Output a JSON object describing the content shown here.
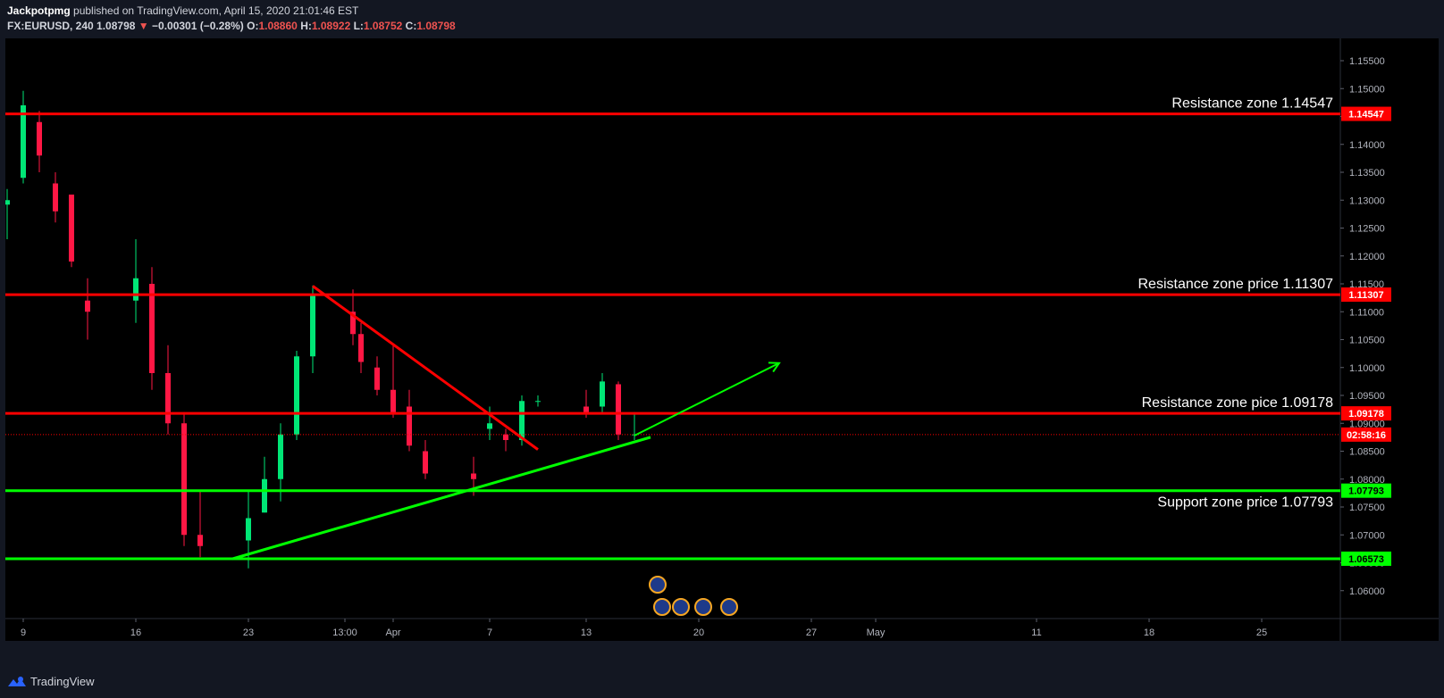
{
  "header": {
    "author": "Jackpotpmg",
    "published_text": "published on TradingView.com, April 15, 2020 21:01:46 EST",
    "symbol": "FX:EURUSD, 240",
    "last": "1.08798",
    "change": "−0.00301 (−0.28%)",
    "o_label": "O:",
    "o_value": "1.08860",
    "h_label": "H:",
    "h_value": "1.08922",
    "l_label": "L:",
    "l_value": "1.08752",
    "c_label": "C:",
    "c_value": "1.08798"
  },
  "footer": {
    "brand": "TradingView"
  },
  "chart_data": {
    "type": "candlestick",
    "ylim": [
      1.055,
      1.159
    ],
    "y_ticks": [
      "1.06000",
      "1.06500",
      "1.07000",
      "1.07500",
      "1.08000",
      "1.08500",
      "1.09000",
      "1.09500",
      "1.10000",
      "1.10500",
      "1.11000",
      "1.11500",
      "1.12000",
      "1.12500",
      "1.13000",
      "1.13500",
      "1.14000",
      "1.14500",
      "1.15000",
      "1.15500"
    ],
    "x_ticks": [
      "9",
      "16",
      "23",
      "13:00",
      "Apr",
      "7",
      "13",
      "20",
      "27",
      "May",
      "11",
      "18",
      "25"
    ],
    "x_tick_dates": [
      "2020-03-09",
      "2020-03-16",
      "2020-03-23",
      "2020-03-29",
      "2020-04-01",
      "2020-04-07",
      "2020-04-13",
      "2020-04-20",
      "2020-04-27",
      "2020-05-01",
      "2020-05-11",
      "2020-05-18",
      "2020-05-25"
    ],
    "levels": [
      {
        "label": "Resistance zone 1.14547",
        "price": 1.14547,
        "tag": "1.14547",
        "color": "#ff0000",
        "text_color": "#ffffff"
      },
      {
        "label": "Resistance zone price 1.11307",
        "price": 1.11307,
        "tag": "1.11307",
        "color": "#ff0000",
        "text_color": "#ffffff"
      },
      {
        "label": "Resistance zone pice 1.09178",
        "price": 1.09178,
        "tag": "1.09178",
        "color": "#ff0000",
        "text_color": "#ffffff"
      },
      {
        "label": "Support zone price 1.07793",
        "price": 1.07793,
        "tag": "1.07793",
        "color": "#00ff00",
        "text_color": "#000000"
      },
      {
        "label": "",
        "price": 1.06573,
        "tag": "1.06573",
        "color": "#00ff00",
        "text_color": "#000000"
      }
    ],
    "current_price": {
      "price": 1.08798,
      "tag": "02:58:16",
      "color": "#ff0000"
    },
    "trendlines": [
      {
        "color": "#ff0000",
        "from": [
          "2020-03-27",
          1.1146
        ],
        "to": [
          "2020-04-10",
          1.0853
        ]
      },
      {
        "color": "#00ff00",
        "from": [
          "2020-03-22",
          1.0657
        ],
        "to": [
          "2020-04-17",
          1.0875
        ]
      },
      {
        "color": "#00ff00",
        "from": [
          "2020-04-16",
          1.0878
        ],
        "to": [
          "2020-04-25",
          1.1008
        ],
        "arrow": true
      }
    ],
    "candles": [
      [
        "2020-03-08 00:00",
        1.1292,
        1.132,
        1.123,
        1.13
      ],
      [
        "2020-03-09 00:00",
        1.134,
        1.1496,
        1.133,
        1.147
      ],
      [
        "2020-03-10 00:00",
        1.144,
        1.146,
        1.135,
        1.138
      ],
      [
        "2020-03-11 00:00",
        1.133,
        1.135,
        1.126,
        1.128
      ],
      [
        "2020-03-12 00:00",
        1.131,
        1.13,
        1.118,
        1.119
      ],
      [
        "2020-03-13 00:00",
        1.112,
        1.116,
        1.105,
        1.11
      ],
      [
        "2020-03-16 00:00",
        1.112,
        1.123,
        1.108,
        1.116
      ],
      [
        "2020-03-17 00:00",
        1.115,
        1.118,
        1.096,
        1.099
      ],
      [
        "2020-03-18 00:00",
        1.099,
        1.104,
        1.088,
        1.09
      ],
      [
        "2020-03-19 00:00",
        1.09,
        1.092,
        1.068,
        1.07
      ],
      [
        "2020-03-20 00:00",
        1.07,
        1.078,
        1.066,
        1.068
      ],
      [
        "2020-03-23 00:00",
        1.069,
        1.078,
        1.064,
        1.073
      ],
      [
        "2020-03-24 00:00",
        1.074,
        1.084,
        1.074,
        1.08
      ],
      [
        "2020-03-25 00:00",
        1.08,
        1.09,
        1.076,
        1.088
      ],
      [
        "2020-03-26 00:00",
        1.088,
        1.103,
        1.087,
        1.102
      ],
      [
        "2020-03-27 00:00",
        1.102,
        1.1147,
        1.099,
        1.113
      ],
      [
        "2020-03-29 12:00",
        1.11,
        1.114,
        1.104,
        1.106
      ],
      [
        "2020-03-30 00:00",
        1.106,
        1.108,
        1.099,
        1.101
      ],
      [
        "2020-03-31 00:00",
        1.1,
        1.102,
        1.095,
        1.096
      ],
      [
        "2020-04-01 00:00",
        1.096,
        1.104,
        1.091,
        1.092
      ],
      [
        "2020-04-02 00:00",
        1.093,
        1.096,
        1.085,
        1.086
      ],
      [
        "2020-04-03 00:00",
        1.085,
        1.087,
        1.08,
        1.081
      ],
      [
        "2020-04-06 00:00",
        1.081,
        1.084,
        1.077,
        1.08
      ],
      [
        "2020-04-07 00:00",
        1.089,
        1.093,
        1.087,
        1.09
      ],
      [
        "2020-04-08 00:00",
        1.088,
        1.089,
        1.085,
        1.087
      ],
      [
        "2020-04-09 00:00",
        1.087,
        1.095,
        1.086,
        1.094
      ],
      [
        "2020-04-10 00:00",
        1.094,
        1.095,
        1.093,
        1.094
      ],
      [
        "2020-04-13 00:00",
        1.093,
        1.096,
        1.091,
        1.092
      ],
      [
        "2020-04-14 00:00",
        1.093,
        1.099,
        1.092,
        1.0975
      ],
      [
        "2020-04-15 00:00",
        1.097,
        1.0975,
        1.087,
        1.088
      ],
      [
        "2020-04-16 00:00",
        1.088,
        1.092,
        1.087,
        1.088
      ]
    ]
  }
}
